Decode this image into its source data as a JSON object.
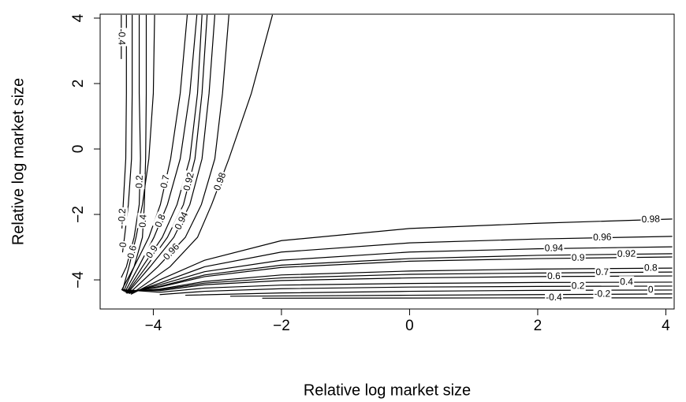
{
  "chart_data": {
    "type": "contour",
    "xlabel": "Relative log market size",
    "ylabel": "Relative log market size",
    "xlim": [
      -4.83,
      4.13
    ],
    "ylim": [
      -4.89,
      4.12
    ],
    "xticks": [
      {
        "value": -4,
        "label": "−4"
      },
      {
        "value": -2,
        "label": "−2"
      },
      0,
      2,
      4
    ],
    "yticks": [
      {
        "value": -4,
        "label": "−4"
      },
      {
        "value": -2,
        "label": "−2"
      },
      0,
      2,
      4
    ],
    "color": "#000000",
    "contours": [
      {
        "level": -0.4,
        "x": [
          -4.5,
          -4.5,
          null,
          -2.3,
          0,
          2,
          4.1
        ],
        "y": [
          4.1,
          2.75,
          null,
          -4.56,
          -4.555,
          -4.55,
          -4.55
        ]
      },
      {
        "level": -0.2,
        "x": [
          -4.42,
          -4.42,
          -4.43,
          -4.47,
          -4.49,
          null,
          -2.8,
          0,
          2,
          4.1
        ],
        "y": [
          4.1,
          1.7,
          -0.3,
          -1.7,
          -2.43,
          null,
          -4.5,
          -4.47,
          -4.45,
          -4.43
        ]
      },
      {
        "level": 0,
        "x": [
          -4.33,
          -4.33,
          -4.34,
          -4.39,
          -4.45,
          -4.48,
          null,
          -3.5,
          -2,
          0,
          2,
          4.1
        ],
        "y": [
          4.1,
          1.7,
          -0.3,
          -1.7,
          -2.7,
          -3.16,
          null,
          -4.47,
          -4.4,
          -4.35,
          -4.32,
          -4.31
        ]
      },
      {
        "level": 0.2,
        "x": [
          -4.22,
          -4.22,
          -4.2,
          -4.22,
          -4.3,
          -4.42,
          -4.5,
          null,
          -3.9,
          -3.2,
          -2,
          0,
          2,
          4.1
        ],
        "y": [
          4.1,
          1.7,
          -0.3,
          -1.7,
          -2.7,
          -3.6,
          -3.93,
          null,
          -4.45,
          -4.35,
          -4.27,
          -4.22,
          -4.2,
          -4.19
        ]
      },
      {
        "level": 0.4,
        "x": [
          -4.11,
          -4.11,
          -4.12,
          -4.14,
          -4.17,
          -4.3,
          -4.49,
          -3.9,
          -3.2,
          -2,
          0,
          2,
          4.1
        ],
        "y": [
          4.1,
          1.7,
          -0.3,
          -1.7,
          -2.7,
          -3.6,
          -4.3,
          -4.38,
          -4.25,
          -4.16,
          -4.11,
          -4.08,
          -4.07
        ]
      },
      {
        "level": 0.6,
        "x": [
          -3.98,
          -4.0,
          -4.07,
          -4.17,
          -4.27,
          -4.38,
          -4.48,
          -3.9,
          -3.2,
          -2,
          0,
          2,
          4.1
        ],
        "y": [
          4.1,
          1.7,
          -0.3,
          -1.7,
          -2.7,
          -3.6,
          -4.32,
          -4.33,
          -4.15,
          -4.02,
          -3.94,
          -3.9,
          -3.88
        ]
      },
      {
        "level": 0.7,
        "x": [
          -3.47,
          -3.58,
          -3.73,
          -3.89,
          -4.07,
          -4.3,
          -4.46,
          -3.9,
          -3.2,
          -2,
          0,
          2,
          4.1
        ],
        "y": [
          4.1,
          1.7,
          -0.3,
          -1.7,
          -2.7,
          -3.6,
          -4.34,
          -4.3,
          -4.1,
          -3.94,
          -3.83,
          -3.79,
          -3.76
        ]
      },
      {
        "level": 0.8,
        "x": [
          -3.32,
          -3.43,
          -3.58,
          -3.78,
          -3.99,
          -4.23,
          -4.44,
          -3.9,
          -3.2,
          -2,
          0,
          2,
          4.1
        ],
        "y": [
          4.1,
          1.7,
          -0.3,
          -1.7,
          -2.7,
          -3.6,
          -4.36,
          -4.28,
          -4.05,
          -3.85,
          -3.73,
          -3.67,
          -3.64
        ]
      },
      {
        "level": 0.9,
        "x": [
          -3.24,
          -3.31,
          -3.43,
          -3.63,
          -3.86,
          -4.17,
          -4.42,
          -3.9,
          -3.2,
          -2,
          0,
          2,
          4.1
        ],
        "y": [
          4.1,
          1.7,
          -0.3,
          -1.7,
          -2.7,
          -3.6,
          -4.38,
          -4.22,
          -3.9,
          -3.62,
          -3.43,
          -3.35,
          -3.3
        ]
      },
      {
        "level": 0.92,
        "x": [
          -3.16,
          -3.24,
          -3.35,
          -3.53,
          -3.78,
          -4.11,
          -4.41,
          -3.9,
          -3.2,
          -2,
          0,
          2,
          4.1
        ],
        "y": [
          4.1,
          1.7,
          -0.3,
          -1.7,
          -2.7,
          -3.6,
          -4.39,
          -4.2,
          -3.85,
          -3.55,
          -3.35,
          -3.25,
          -3.2
        ]
      },
      {
        "level": 0.94,
        "x": [
          -3.04,
          -3.13,
          -3.24,
          -3.43,
          -3.68,
          -4.05,
          -4.4,
          -3.9,
          -3.2,
          -2,
          0,
          2,
          4.1
        ],
        "y": [
          4.1,
          1.7,
          -0.3,
          -1.7,
          -2.7,
          -3.6,
          -4.4,
          -4.15,
          -3.75,
          -3.4,
          -3.15,
          -3.05,
          -2.99
        ]
      },
      {
        "level": 0.96,
        "x": [
          -2.82,
          -2.92,
          -3.04,
          -3.25,
          -3.5,
          -3.93,
          -4.38,
          -3.9,
          -3.2,
          -2,
          0,
          2,
          4.1
        ],
        "y": [
          4.1,
          1.7,
          -0.3,
          -1.7,
          -2.7,
          -3.6,
          -4.42,
          -4.1,
          -3.6,
          -3.15,
          -2.87,
          -2.75,
          -2.67
        ]
      },
      {
        "level": 0.98,
        "x": [
          -2.14,
          -2.47,
          -2.82,
          -3.09,
          -3.31,
          -3.74,
          -4.35,
          -3.9,
          -3.2,
          -2,
          0,
          2,
          4.1
        ],
        "y": [
          4.1,
          1.7,
          -0.3,
          -1.7,
          -2.7,
          -3.6,
          -4.44,
          -4.0,
          -3.4,
          -2.8,
          -2.43,
          -2.27,
          -2.14
        ]
      }
    ]
  }
}
